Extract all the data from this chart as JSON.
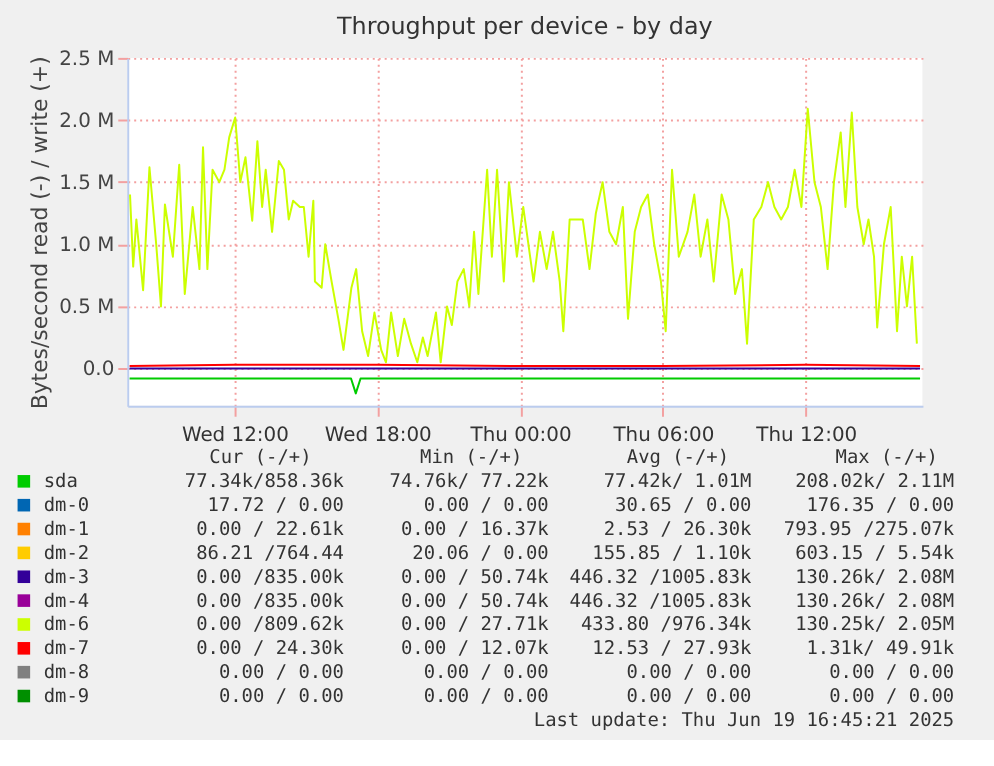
{
  "chart_data": {
    "type": "line",
    "title": "Throughput per device - by day",
    "ylabel": "Bytes/second read (-) / write (+)",
    "xlim": [
      "2025-06-18T07:30",
      "2025-06-19T16:54"
    ],
    "ylim": [
      -0.3,
      2.5
    ],
    "xticks": [
      {
        "value": "2025-06-18T12:00",
        "label": "Wed 12:00"
      },
      {
        "value": "2025-06-18T18:00",
        "label": "Wed 18:00"
      },
      {
        "value": "2025-06-19T00:00",
        "label": "Thu 00:00"
      },
      {
        "value": "2025-06-19T06:00",
        "label": "Thu 06:00"
      },
      {
        "value": "2025-06-19T12:00",
        "label": "Thu 12:00"
      }
    ],
    "yticks": [
      {
        "value": 0,
        "label": "0.0"
      },
      {
        "value": 0.5,
        "label": "0.5 M"
      },
      {
        "value": 1,
        "label": "1.0 M"
      },
      {
        "value": 1.5,
        "label": "1.5 M"
      },
      {
        "value": 2,
        "label": "2.0 M"
      },
      {
        "value": 2.5,
        "label": "2.5 M"
      }
    ],
    "grid": true,
    "legend": "bottom",
    "marker": "none",
    "line_style": "solid",
    "series": [
      {
        "name": "sda",
        "color": "#00cc00",
        "x": [
          "2025-06-18T07:36",
          "2025-06-18T16:54",
          "2025-06-18T17:06",
          "2025-06-18T17:18",
          "2025-06-19T16:48"
        ],
        "values": [
          -0.08,
          -0.08,
          -0.2,
          -0.08,
          -0.08
        ]
      },
      {
        "name": "dm-0",
        "color": "#0066b3"
      },
      {
        "name": "dm-1",
        "color": "#ff8000"
      },
      {
        "name": "dm-2",
        "color": "#ffcc00"
      },
      {
        "name": "dm-3",
        "color": "#330099",
        "x": [
          "2025-06-18T07:36",
          "2025-06-19T16:48"
        ],
        "values": [
          0,
          0
        ]
      },
      {
        "name": "dm-4",
        "color": "#990099"
      },
      {
        "name": "dm-6",
        "color": "#ccff00",
        "x": [
          "2025-06-18T07:37",
          "2025-06-18T07:45",
          "2025-06-18T07:53",
          "2025-06-18T08:10",
          "2025-06-18T08:26",
          "2025-06-18T08:43",
          "2025-06-18T08:55",
          "2025-06-18T09:05",
          "2025-06-18T09:25",
          "2025-06-18T09:41",
          "2025-06-18T09:55",
          "2025-06-18T10:15",
          "2025-06-18T10:32",
          "2025-06-18T10:41",
          "2025-06-18T10:52",
          "2025-06-18T11:05",
          "2025-06-18T11:22",
          "2025-06-18T11:35",
          "2025-06-18T11:47",
          "2025-06-18T12:02",
          "2025-06-18T12:15",
          "2025-06-18T12:28",
          "2025-06-18T12:45",
          "2025-06-18T12:58",
          "2025-06-18T13:10",
          "2025-06-18T13:19",
          "2025-06-18T13:35",
          "2025-06-18T13:52",
          "2025-06-18T14:05",
          "2025-06-18T14:17",
          "2025-06-18T14:28",
          "2025-06-18T14:45",
          "2025-06-18T14:55",
          "2025-06-18T15:07",
          "2025-06-18T15:19",
          "2025-06-18T15:23",
          "2025-06-18T15:40",
          "2025-06-18T15:49",
          "2025-06-18T16:05",
          "2025-06-18T16:22",
          "2025-06-18T16:35",
          "2025-06-18T16:55",
          "2025-06-18T17:07",
          "2025-06-18T17:22",
          "2025-06-18T17:37",
          "2025-06-18T17:53",
          "2025-06-18T18:10",
          "2025-06-18T18:22",
          "2025-06-18T18:35",
          "2025-06-18T18:52",
          "2025-06-18T19:08",
          "2025-06-18T19:25",
          "2025-06-18T19:41",
          "2025-06-18T19:55",
          "2025-06-18T20:07",
          "2025-06-18T20:28",
          "2025-06-18T20:40",
          "2025-06-18T20:56",
          "2025-06-18T21:08",
          "2025-06-18T21:22",
          "2025-06-18T21:38",
          "2025-06-18T21:52",
          "2025-06-18T22:04",
          "2025-06-18T22:15",
          "2025-06-18T22:37",
          "2025-06-18T22:49",
          "2025-06-18T23:02",
          "2025-06-18T23:19",
          "2025-06-18T23:32",
          "2025-06-18T23:52",
          "2025-06-19T00:08",
          "2025-06-19T00:34",
          "2025-06-19T00:50",
          "2025-06-19T01:07",
          "2025-06-19T01:23",
          "2025-06-19T01:40",
          "2025-06-19T01:49",
          "2025-06-19T02:05",
          "2025-06-19T02:22",
          "2025-06-19T02:38",
          "2025-06-19T02:55",
          "2025-06-19T03:11",
          "2025-06-19T03:28",
          "2025-06-19T03:45",
          "2025-06-19T04:02",
          "2025-06-19T04:19",
          "2025-06-19T04:32",
          "2025-06-19T04:49",
          "2025-06-19T05:05",
          "2025-06-19T05:22",
          "2025-06-19T05:38",
          "2025-06-19T05:55",
          "2025-06-19T06:07",
          "2025-06-19T06:23",
          "2025-06-19T06:40",
          "2025-06-19T07:02",
          "2025-06-19T07:19",
          "2025-06-19T07:35",
          "2025-06-19T07:52",
          "2025-06-19T08:08",
          "2025-06-19T08:28",
          "2025-06-19T08:45",
          "2025-06-19T09:02",
          "2025-06-19T09:19",
          "2025-06-19T09:32",
          "2025-06-19T09:49",
          "2025-06-19T10:08",
          "2025-06-19T10:25",
          "2025-06-19T10:41",
          "2025-06-19T10:58",
          "2025-06-19T11:15",
          "2025-06-19T11:32",
          "2025-06-19T11:49",
          "2025-06-19T12:05",
          "2025-06-19T12:22",
          "2025-06-19T12:38",
          "2025-06-19T12:55",
          "2025-06-19T13:11",
          "2025-06-19T13:28",
          "2025-06-19T13:40",
          "2025-06-19T13:56",
          "2025-06-19T14:10",
          "2025-06-19T14:26",
          "2025-06-19T14:38",
          "2025-06-19T14:52",
          "2025-06-19T15:00",
          "2025-06-19T15:17",
          "2025-06-19T15:34",
          "2025-06-19T15:50",
          "2025-06-19T16:02",
          "2025-06-19T16:15",
          "2025-06-19T16:28",
          "2025-06-19T16:40"
        ],
        "values": [
          1.4,
          0.82,
          1.2,
          0.63,
          1.62,
          1.0,
          0.5,
          1.32,
          0.9,
          1.64,
          0.6,
          1.3,
          0.8,
          1.78,
          0.8,
          1.6,
          1.5,
          1.6,
          1.86,
          2.02,
          1.5,
          1.7,
          1.19,
          1.83,
          1.3,
          1.6,
          1.1,
          1.67,
          1.6,
          1.2,
          1.35,
          1.3,
          1.3,
          0.9,
          1.35,
          0.7,
          0.65,
          1.0,
          0.7,
          0.4,
          0.15,
          0.65,
          0.8,
          0.3,
          0.1,
          0.45,
          0.15,
          0.05,
          0.45,
          0.1,
          0.4,
          0.2,
          0.05,
          0.25,
          0.1,
          0.45,
          0.05,
          0.5,
          0.35,
          0.7,
          0.8,
          0.5,
          1.1,
          0.6,
          1.6,
          0.9,
          1.6,
          0.7,
          1.5,
          0.9,
          1.3,
          0.7,
          1.1,
          0.8,
          1.1,
          0.7,
          0.3,
          1.2,
          1.2,
          1.2,
          0.8,
          1.25,
          1.5,
          1.1,
          1.0,
          1.3,
          0.4,
          1.1,
          1.3,
          1.4,
          1.0,
          0.7,
          0.3,
          1.6,
          0.9,
          1.1,
          1.4,
          0.9,
          1.2,
          0.7,
          1.4,
          1.2,
          0.6,
          0.8,
          0.2,
          1.2,
          1.3,
          1.5,
          1.3,
          1.2,
          1.3,
          1.6,
          1.3,
          2.09,
          1.5,
          1.3,
          0.8,
          1.5,
          1.9,
          1.3,
          2.06,
          1.3,
          1.0,
          1.2,
          0.9,
          0.33,
          1.0,
          1.3,
          0.3,
          0.9,
          0.5,
          0.9,
          0.2
        ]
      },
      {
        "name": "dm-7",
        "color": "#ff0000",
        "x": [
          "2025-06-18T07:36",
          "2025-06-18T12:00",
          "2025-06-18T18:00",
          "2025-06-19T00:00",
          "2025-06-19T06:00",
          "2025-06-19T12:00",
          "2025-06-19T16:48"
        ],
        "values": [
          0.02,
          0.03,
          0.03,
          0.02,
          0.02,
          0.03,
          0.02
        ]
      },
      {
        "name": "dm-8",
        "color": "#808080"
      },
      {
        "name": "dm-9",
        "color": "#008f00"
      }
    ],
    "annotations": [
      "Cur (-/+)",
      "Min (-/+)",
      "Avg (-/+)",
      "Max (-/+)",
      "77.34k/858.36k",
      "74.76k/ 77.22k",
      "77.42k/ 1.01M",
      "208.02k/ 2.11M",
      "17.72 / 0.00",
      "0.00 / 0.00",
      "30.65 / 0.00",
      "176.35 / 0.00",
      "0.00 / 22.61k",
      "0.00 / 16.37k",
      "2.53 / 26.30k",
      "793.95 /275.07k",
      "86.21 /764.44",
      "20.06 / 0.00",
      "155.85 / 1.10k",
      "603.15 / 5.54k",
      "0.00 /835.00k",
      "0.00 / 50.74k",
      "446.32 /1005.83k",
      "130.26k/ 2.08M",
      "0.00 /835.00k",
      "0.00 / 50.74k",
      "446.32 /1005.83k",
      "130.26k/ 2.08M",
      "0.00 /809.62k",
      "0.00 / 27.71k",
      "433.80 /976.34k",
      "130.25k/ 2.05M",
      "0.00 / 24.30k",
      "0.00 / 12.07k",
      "12.53 / 27.93k",
      "1.31k/ 49.91k",
      "0.00 / 0.00",
      "0.00 / 0.00",
      "0.00 / 0.00",
      "0.00 / 0.00",
      "0.00 / 0.00",
      "0.00 / 0.00",
      "0.00 / 0.00",
      "0.00 / 0.00",
      "Last update: Thu Jun 19 16:45:21 2025"
    ]
  }
}
